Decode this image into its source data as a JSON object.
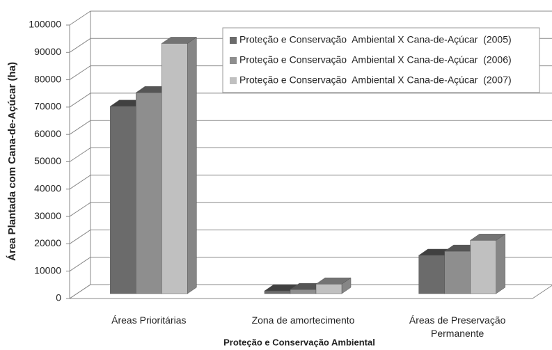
{
  "chart_data": {
    "type": "bar3d",
    "y_label": "Área Plantada com Cana-de-Açúcar (ha)",
    "x_label": "Proteção e Conservação Ambiental",
    "categories": [
      "Áreas Prioritárias",
      "Zona de amortecimento",
      "Áreas de Preservação Permanente"
    ],
    "series": [
      {
        "name": "Proteção e Conservação  Ambiental X Cana-de-Açúcar  (2005)",
        "color": "#6b6b6b",
        "values": [
          69000,
          1500,
          14500
        ]
      },
      {
        "name": "Proteção e Conservação  Ambiental X Cana-de-Açúcar  (2006)",
        "color": "#8e8e8e",
        "values": [
          74000,
          2000,
          16000
        ]
      },
      {
        "name": "Proteção e Conservação  Ambiental X Cana-de-Açúcar  (2007)",
        "color": "#c0c0c0",
        "values": [
          92000,
          4000,
          20000
        ]
      }
    ],
    "ylim": [
      0,
      100000
    ],
    "yticks": [
      0,
      10000,
      20000,
      30000,
      40000,
      50000,
      60000,
      70000,
      80000,
      90000,
      100000
    ],
    "grid": true
  }
}
